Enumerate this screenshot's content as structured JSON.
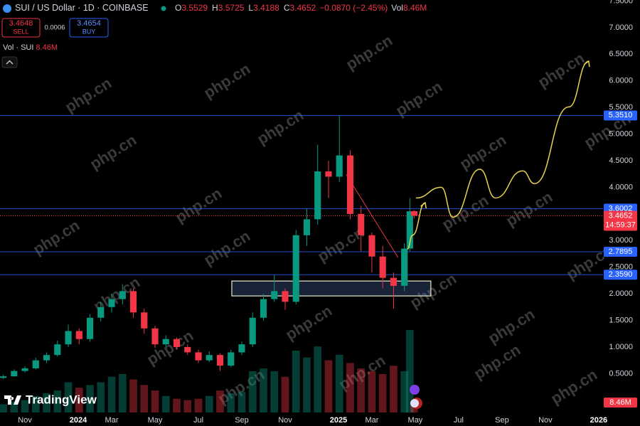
{
  "header": {
    "symbol": "SUI / US Dollar · 1D · COINBASE",
    "ohlc": [
      {
        "key": "O",
        "value": "3.5529"
      },
      {
        "key": "H",
        "value": "3.5725"
      },
      {
        "key": "L",
        "value": "3.4188"
      },
      {
        "key": "C",
        "value": "3.4652"
      }
    ],
    "change": "−0.0870 (−2.45%)",
    "vol_key": "Vol",
    "vol": "8.46M",
    "sell_price": "3.4648",
    "sell": "SELL",
    "spread": "0.0006",
    "buy_price": "3.4654",
    "buy": "BUY",
    "volume_legend": "Vol · SUI",
    "volume_legend_value": "8.46M"
  },
  "footer": {
    "logo": "TradingView",
    "watermark": "php.cn"
  },
  "chart_data": {
    "type": "candlestick",
    "x": [
      -1.0,
      -0.5,
      0.0,
      0.5,
      1.0,
      1.5,
      2.0,
      2.5,
      3.0,
      3.5,
      4.0,
      4.5,
      5.0,
      5.5,
      6.0,
      6.5,
      7.0,
      7.5,
      8.0,
      8.5,
      9.0,
      9.5,
      10.0,
      10.5,
      11.0,
      11.5,
      12.0,
      12.5,
      13.0,
      13.5,
      14.0,
      14.5,
      15.0,
      15.5,
      16.0,
      16.5,
      17.0,
      17.5,
      17.75,
      17.95
    ],
    "open": [
      0.42,
      0.45,
      0.55,
      0.6,
      0.75,
      0.85,
      1.05,
      1.3,
      1.15,
      1.55,
      1.75,
      1.9,
      2.05,
      1.65,
      1.35,
      1.05,
      1.15,
      1.0,
      0.9,
      0.75,
      0.85,
      0.65,
      0.9,
      1.05,
      1.55,
      1.9,
      2.05,
      1.85,
      3.1,
      3.4,
      4.3,
      4.2,
      4.6,
      3.5,
      3.1,
      2.7,
      2.3,
      2.15,
      2.85,
      3.5529
    ],
    "high": [
      0.48,
      0.58,
      0.64,
      0.8,
      0.9,
      1.12,
      1.42,
      1.35,
      1.62,
      1.85,
      2.0,
      2.18,
      2.1,
      1.72,
      1.4,
      1.22,
      1.18,
      1.05,
      0.95,
      0.92,
      0.88,
      0.95,
      1.1,
      1.65,
      2.0,
      2.36,
      2.1,
      3.2,
      3.6,
      4.8,
      4.5,
      5.35,
      4.7,
      3.65,
      3.15,
      2.9,
      2.4,
      2.95,
      3.8,
      3.5725
    ],
    "low": [
      0.4,
      0.44,
      0.52,
      0.58,
      0.7,
      0.82,
      1.0,
      1.05,
      1.1,
      1.48,
      1.65,
      1.8,
      1.55,
      1.25,
      0.98,
      1.0,
      0.95,
      0.85,
      0.7,
      0.72,
      0.55,
      0.62,
      0.85,
      1.0,
      1.5,
      1.85,
      1.7,
      1.8,
      2.9,
      3.3,
      3.8,
      4.1,
      3.4,
      2.8,
      2.4,
      2.1,
      1.72,
      2.05,
      2.8,
      3.4188
    ],
    "close": [
      0.45,
      0.55,
      0.6,
      0.75,
      0.85,
      1.05,
      1.3,
      1.15,
      1.55,
      1.75,
      1.9,
      2.05,
      1.65,
      1.35,
      1.05,
      1.15,
      1.0,
      0.9,
      0.75,
      0.85,
      0.65,
      0.9,
      1.05,
      1.55,
      1.9,
      2.05,
      1.85,
      3.1,
      3.4,
      4.3,
      4.2,
      4.6,
      3.5,
      3.1,
      2.7,
      2.3,
      2.15,
      2.85,
      3.55,
      3.4652
    ],
    "volume": [
      6,
      8,
      9,
      12,
      14,
      16,
      22,
      18,
      20,
      22,
      26,
      28,
      24,
      20,
      16,
      12,
      10,
      9,
      10,
      12,
      16,
      14,
      15,
      30,
      32,
      30,
      26,
      45,
      40,
      48,
      38,
      42,
      36,
      32,
      30,
      28,
      34,
      30,
      60,
      8.46
    ],
    "up_color": "#089981",
    "down_color": "#f23645",
    "xlim": [
      -1.15,
      26.66
    ],
    "ylim": [
      -0.23,
      7.52
    ],
    "y2lim": [
      0,
      300
    ],
    "xticks": [
      {
        "value": 0,
        "label": "Nov"
      },
      {
        "value": 2,
        "label": "2024"
      },
      {
        "value": 4,
        "label": "Mar"
      },
      {
        "value": 6,
        "label": "May"
      },
      {
        "value": 8,
        "label": "Jul"
      },
      {
        "value": 10,
        "label": "Sep"
      },
      {
        "value": 12,
        "label": "Nov"
      },
      {
        "value": 14,
        "label": "2025"
      },
      {
        "value": 16,
        "label": "Mar"
      },
      {
        "value": 18,
        "label": "May"
      },
      {
        "value": 20,
        "label": "Jul"
      },
      {
        "value": 22,
        "label": "Sep"
      },
      {
        "value": 24,
        "label": "Nov"
      },
      {
        "value": 26,
        "label": "2026"
      }
    ],
    "yticks": [
      {
        "value": 0.5,
        "label": "0.5000"
      },
      {
        "value": 1,
        "label": "1.0000"
      },
      {
        "value": 1.5,
        "label": "1.5000"
      },
      {
        "value": 2,
        "label": "2.0000"
      },
      {
        "value": 2.5,
        "label": "2.5000"
      },
      {
        "value": 3,
        "label": "3.0000"
      },
      {
        "value": 3.5,
        "label": "3.5000"
      },
      {
        "value": 4,
        "label": "4.0000"
      },
      {
        "value": 4.5,
        "label": "4.5000"
      },
      {
        "value": 5,
        "label": "5.0000"
      },
      {
        "value": 5.5,
        "label": "5.5000"
      },
      {
        "value": 6,
        "label": "6.0000"
      },
      {
        "value": 6.5,
        "label": "6.5000"
      },
      {
        "value": 7,
        "label": "7.0000"
      },
      {
        "value": 7.5,
        "label": "7.5000"
      }
    ],
    "levels": [
      {
        "value": 5.351,
        "label": "5.3510"
      },
      {
        "value": 3.6002,
        "label": "3.6002"
      },
      {
        "value": 2.7895,
        "label": "2.7895"
      },
      {
        "value": 2.359,
        "label": "2.3590"
      }
    ],
    "level_color": "#2962ff",
    "last_price": {
      "value": 3.4652,
      "label": "3.4652",
      "countdown": "14:59:37",
      "color": "#f23645"
    },
    "volume_label": "8.46M",
    "zone": {
      "x": [
        9.54,
        18.72
      ],
      "y": [
        1.96,
        2.24
      ]
    },
    "trend_line": {
      "x": [
        14.82,
        17.21
      ],
      "y": [
        4.24,
        2.68
      ],
      "color": "#f23645"
    },
    "projections": [
      {
        "x": [
          17.64,
          17.87,
          18.46
        ],
        "y": [
          2.84,
          3.1,
          3.71
        ]
      },
      {
        "x": [
          18.03,
          19.2,
          19.74,
          20.98,
          21.7,
          22.95,
          23.5,
          25.08,
          26.0
        ],
        "y": [
          3.8,
          4.0,
          3.44,
          4.34,
          3.8,
          4.31,
          4.07,
          5.51,
          6.37
        ]
      }
    ],
    "projection_color": "#e8d44d"
  }
}
